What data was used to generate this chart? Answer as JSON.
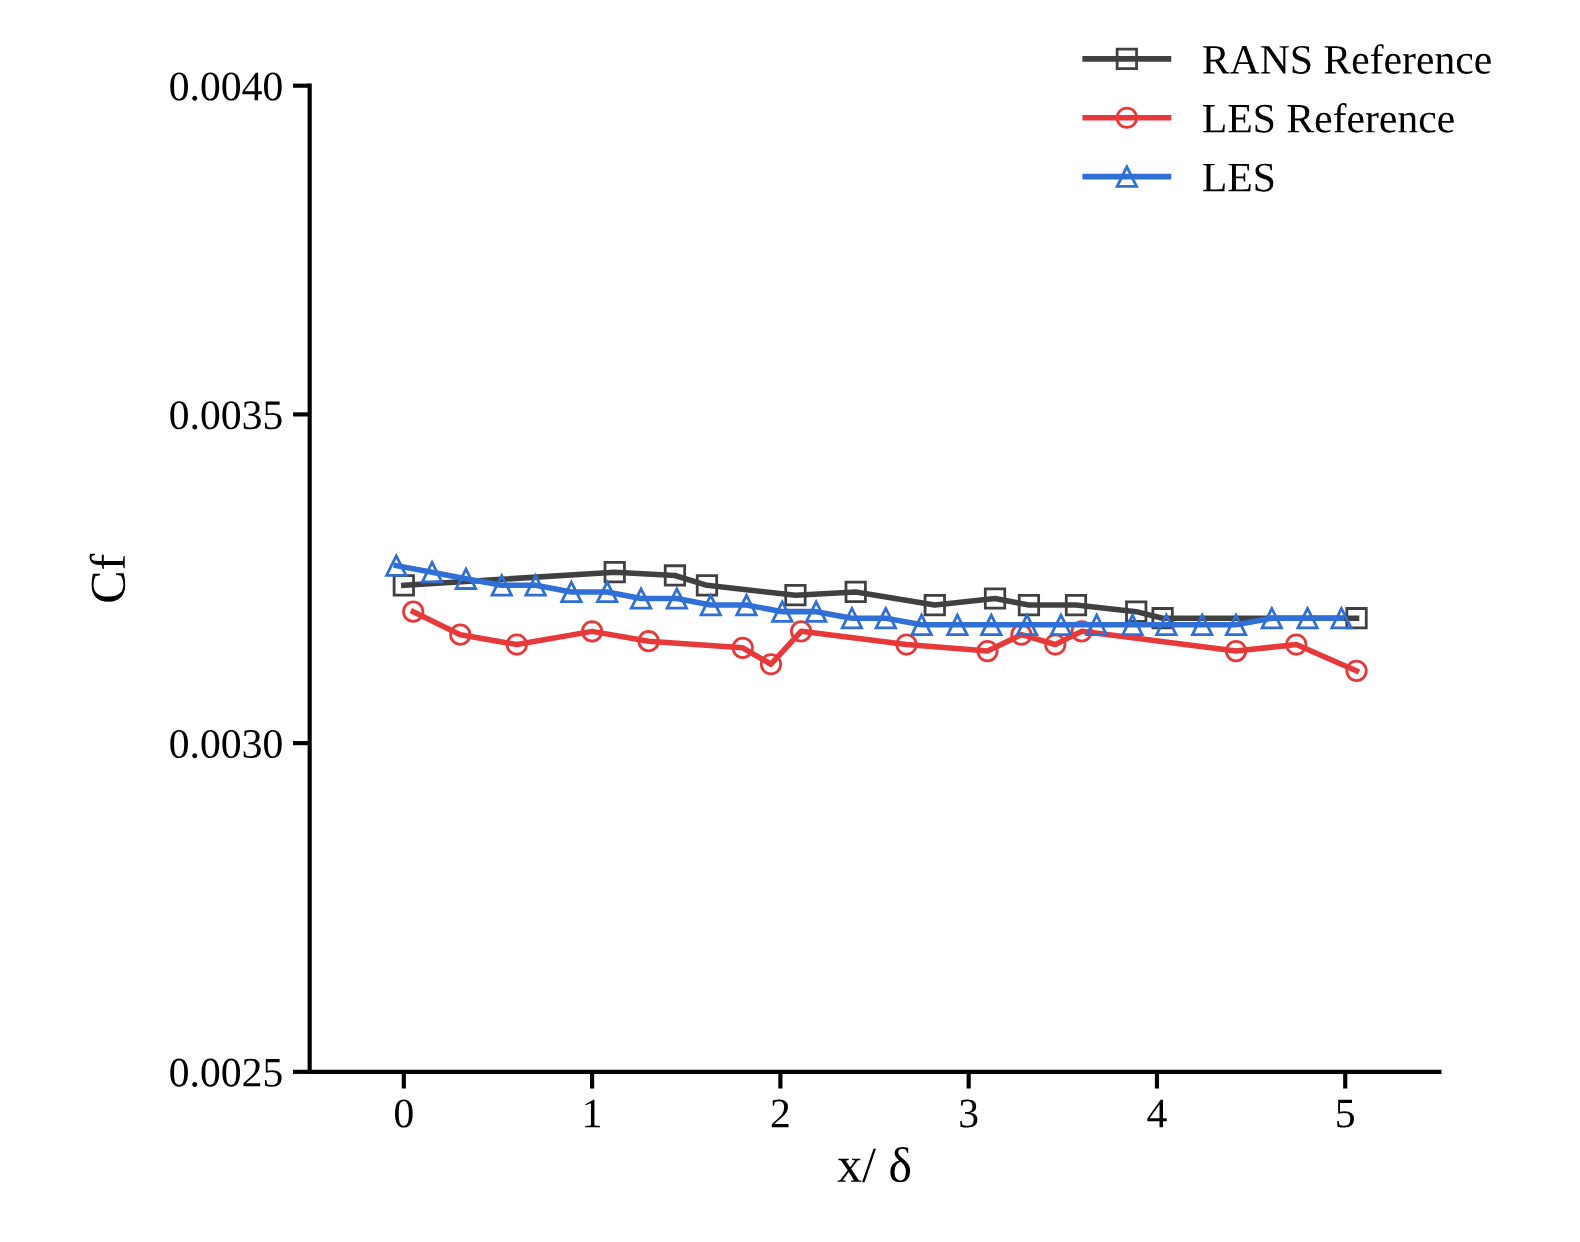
{
  "chart_data": {
    "type": "line",
    "xlabel": "x/ δ",
    "ylabel": "Cf",
    "xlim": [
      -0.5,
      5.5
    ],
    "xticks": [
      0,
      1,
      2,
      3,
      4,
      5
    ],
    "ylim": [
      0.0025,
      0.004
    ],
    "yticks": [
      {
        "value": 0.0025,
        "label": "0.0025"
      },
      {
        "value": 0.003,
        "label": "0.0030"
      },
      {
        "value": 0.0035,
        "label": "0.0035"
      },
      {
        "value": 0.004,
        "label": "0.0040"
      }
    ],
    "grid": false,
    "legend": "top right",
    "line_style": "solid",
    "series": [
      {
        "name": "RANS Reference",
        "color": "#404040",
        "marker": "square",
        "x": [
          0,
          1.12,
          1.44,
          1.61,
          2.08,
          2.4,
          2.82,
          3.14,
          3.32,
          3.57,
          3.89,
          4.03,
          5.06
        ],
        "values": [
          0.00324,
          0.00326,
          0.003255,
          0.00324,
          0.003225,
          0.00323,
          0.00321,
          0.00322,
          0.00321,
          0.00321,
          0.0032,
          0.00319,
          0.00319
        ]
      },
      {
        "name": "LES Reference",
        "color": "#e8393a",
        "marker": "circle",
        "x": [
          0.05,
          0.3,
          0.6,
          1.0,
          1.3,
          1.8,
          1.95,
          2.11,
          2.67,
          3.1,
          3.28,
          3.46,
          3.6,
          4.42,
          4.74,
          5.06
        ],
        "values": [
          0.0032,
          0.003165,
          0.00315,
          0.00317,
          0.003155,
          0.003145,
          0.00312,
          0.00317,
          0.00315,
          0.00314,
          0.003165,
          0.00315,
          0.00317,
          0.00314,
          0.00315,
          0.00311
        ]
      },
      {
        "name": "LES",
        "color": "#2f6fd6",
        "marker": "triangle",
        "x": [
          -0.04,
          0.15,
          0.33,
          0.52,
          0.7,
          0.89,
          1.08,
          1.26,
          1.45,
          1.63,
          1.82,
          2.01,
          2.19,
          2.38,
          2.56,
          2.75,
          2.94,
          3.12,
          3.31,
          3.49,
          3.68,
          3.87,
          4.05,
          4.24,
          4.42,
          4.61,
          4.8,
          4.98
        ],
        "values": [
          0.00327,
          0.00326,
          0.00325,
          0.00324,
          0.00324,
          0.00323,
          0.00323,
          0.00322,
          0.00322,
          0.00321,
          0.00321,
          0.0032,
          0.0032,
          0.00319,
          0.00319,
          0.00318,
          0.00318,
          0.00318,
          0.00318,
          0.00318,
          0.00318,
          0.00318,
          0.00318,
          0.00318,
          0.00318,
          0.00319,
          0.00319,
          0.00319
        ]
      }
    ]
  }
}
